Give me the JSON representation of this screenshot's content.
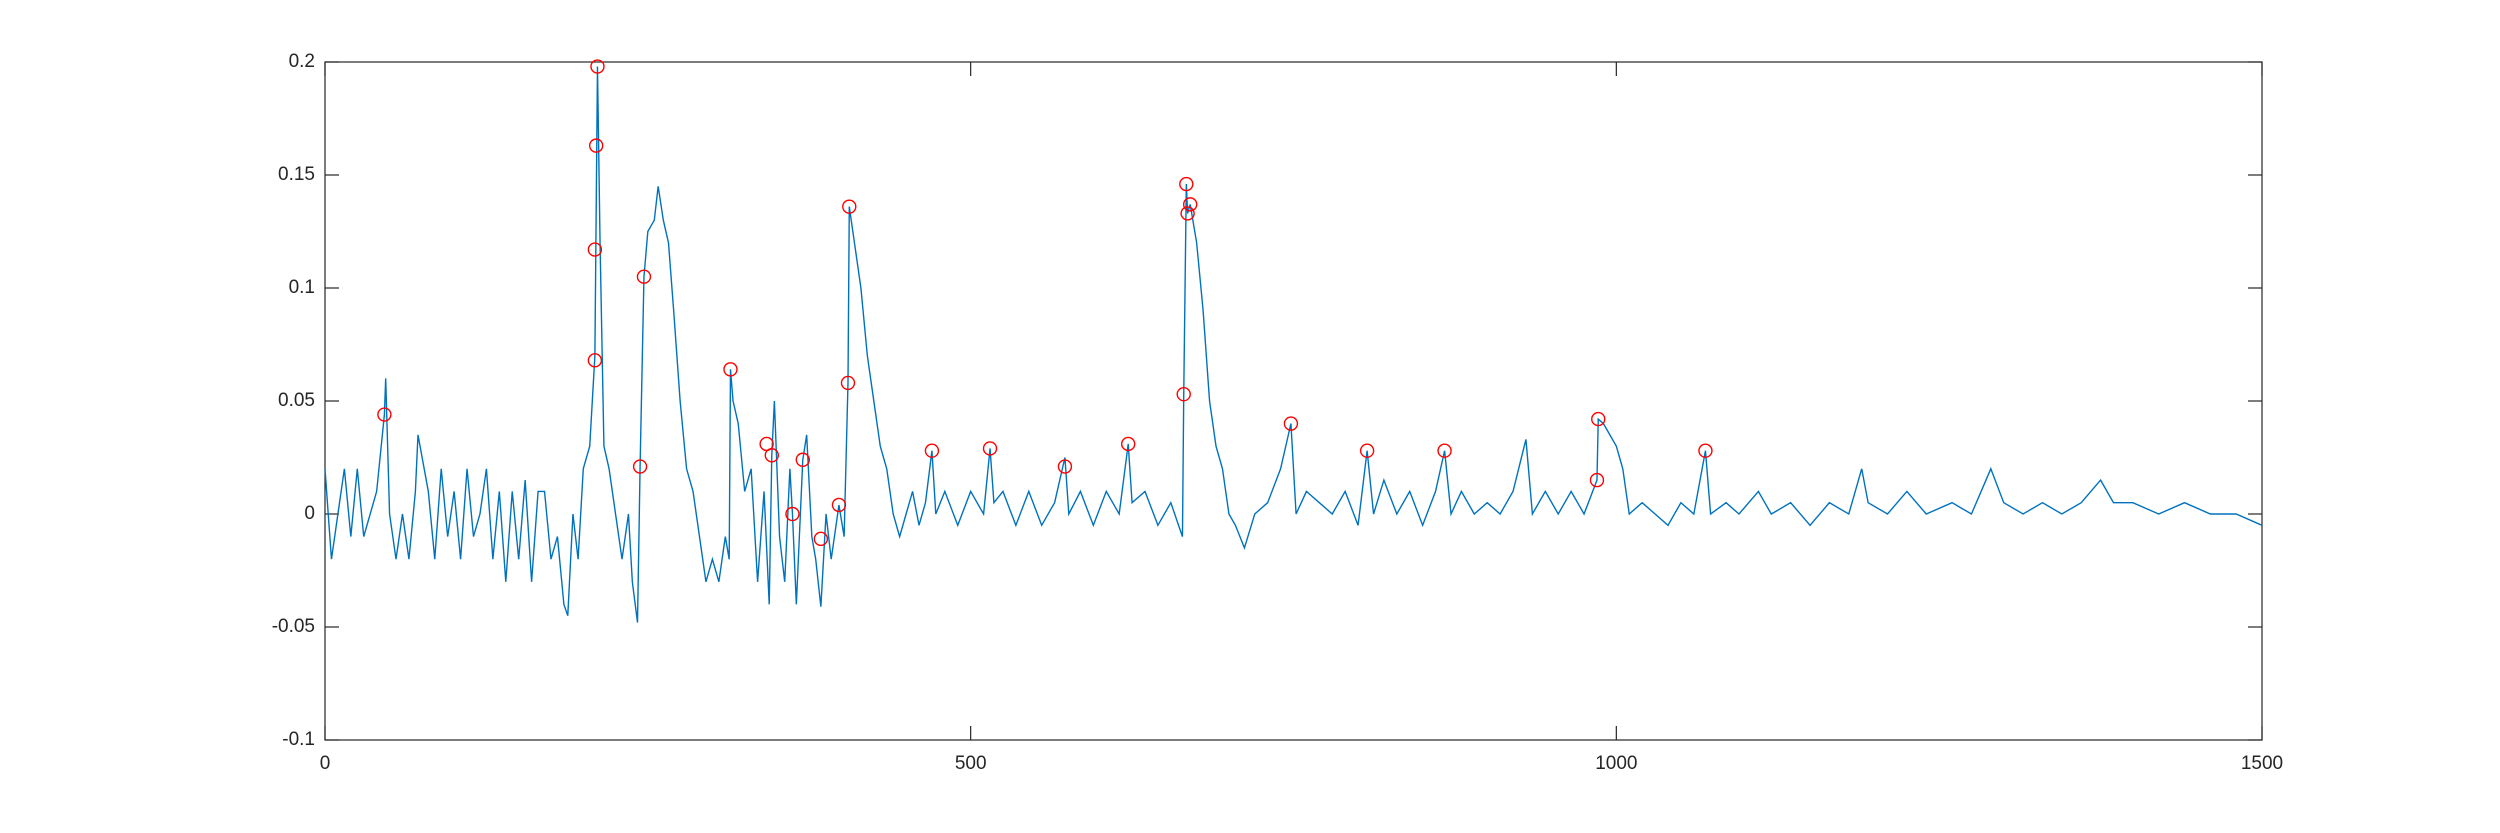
{
  "chart_data": {
    "type": "line",
    "xlim": [
      0,
      1500
    ],
    "xticks": [
      0,
      500,
      1000,
      1500
    ],
    "ylim": [
      -0.1,
      0.2
    ],
    "yticks": [
      -0.1,
      -0.05,
      0,
      0.05,
      0.1,
      0.15,
      0.2
    ],
    "box": true,
    "series": [
      {
        "color": "#0072bd",
        "marker": "none",
        "x": [
          0,
          5,
          10,
          15,
          20,
          25,
          30,
          40,
          46,
          47,
          50,
          55,
          60,
          65,
          70,
          72,
          80,
          85,
          90,
          95,
          100,
          105,
          110,
          115,
          120,
          125,
          130,
          135,
          140,
          145,
          150,
          155,
          160,
          165,
          170,
          175,
          180,
          185,
          188,
          192,
          196,
          200,
          205,
          209,
          211,
          213,
          216,
          220,
          225,
          230,
          235,
          238,
          242,
          244,
          247,
          250,
          255,
          258,
          262,
          266,
          270,
          275,
          280,
          285,
          290,
          295,
          300,
          305,
          310,
          313,
          314,
          316,
          320,
          325,
          330,
          335,
          340,
          344,
          346,
          348,
          352,
          356,
          360,
          362,
          365,
          370,
          373,
          377,
          380,
          384,
          388,
          392,
          398,
          402,
          405,
          406,
          410,
          415,
          420,
          425,
          430,
          435,
          440,
          445,
          450,
          455,
          460,
          465,
          470,
          473,
          480,
          490,
          500,
          510,
          515,
          518,
          525,
          535,
          545,
          555,
          565,
          573,
          576,
          585,
          595,
          605,
          615,
          622,
          625,
          635,
          645,
          655,
          664,
          665,
          667,
          668,
          670,
          675,
          680,
          685,
          690,
          695,
          700,
          705,
          712,
          720,
          730,
          740,
          748,
          752,
          760,
          770,
          780,
          790,
          800,
          807,
          812,
          820,
          830,
          840,
          850,
          860,
          867,
          872,
          880,
          890,
          900,
          910,
          920,
          930,
          935,
          945,
          955,
          965,
          975,
          985,
          986,
          990,
          995,
          1000,
          1005,
          1010,
          1020,
          1030,
          1040,
          1050,
          1060,
          1069,
          1073,
          1085,
          1095,
          1110,
          1120,
          1135,
          1150,
          1165,
          1180,
          1190,
          1195,
          1210,
          1225,
          1240,
          1260,
          1275,
          1290,
          1300,
          1315,
          1330,
          1345,
          1360,
          1375,
          1385,
          1400,
          1420,
          1440,
          1460,
          1480,
          1500
        ],
        "values": [
          0.02,
          -0.02,
          0.0,
          0.02,
          -0.01,
          0.02,
          -0.01,
          0.01,
          0.044,
          0.06,
          0.0,
          -0.02,
          0.0,
          -0.02,
          0.01,
          0.035,
          0.01,
          -0.02,
          0.02,
          -0.01,
          0.01,
          -0.02,
          0.02,
          -0.01,
          0.0,
          0.02,
          -0.02,
          0.01,
          -0.03,
          0.01,
          -0.02,
          0.015,
          -0.03,
          0.01,
          0.01,
          -0.02,
          -0.01,
          -0.04,
          -0.045,
          0.0,
          -0.02,
          0.02,
          0.03,
          0.07,
          0.198,
          0.12,
          0.03,
          0.02,
          0.0,
          -0.02,
          0.0,
          -0.03,
          -0.048,
          0.021,
          0.105,
          0.125,
          0.13,
          0.145,
          0.13,
          0.12,
          0.09,
          0.05,
          0.02,
          0.01,
          -0.01,
          -0.03,
          -0.02,
          -0.03,
          -0.01,
          -0.02,
          0.064,
          0.05,
          0.04,
          0.01,
          0.02,
          -0.03,
          0.01,
          -0.04,
          0.026,
          0.05,
          -0.01,
          -0.03,
          0.02,
          0.0,
          -0.04,
          0.024,
          0.035,
          -0.01,
          -0.02,
          -0.041,
          0.0,
          -0.02,
          0.004,
          -0.01,
          0.058,
          0.136,
          0.12,
          0.1,
          0.07,
          0.05,
          0.03,
          0.02,
          0.0,
          -0.01,
          0.0,
          0.01,
          -0.005,
          0.005,
          0.028,
          0.0,
          0.01,
          -0.005,
          0.01,
          0.0,
          0.029,
          0.005,
          0.01,
          -0.005,
          0.01,
          -0.005,
          0.005,
          0.025,
          0.0,
          0.01,
          -0.005,
          0.01,
          0.0,
          0.031,
          0.005,
          0.01,
          -0.005,
          0.005,
          -0.01,
          0.053,
          0.146,
          0.133,
          0.137,
          0.12,
          0.09,
          0.05,
          0.03,
          0.02,
          0.0,
          -0.005,
          -0.015,
          0.0,
          0.005,
          0.02,
          0.04,
          0.0,
          0.01,
          0.005,
          0.0,
          0.01,
          -0.005,
          0.028,
          0.0,
          0.015,
          0.0,
          0.01,
          -0.005,
          0.01,
          0.028,
          0.0,
          0.01,
          0.0,
          0.005,
          0.0,
          0.01,
          0.033,
          0.0,
          0.01,
          0.0,
          0.01,
          0.0,
          0.015,
          0.042,
          0.04,
          0.035,
          0.03,
          0.02,
          0.0,
          0.005,
          0.0,
          -0.005,
          0.005,
          0.0,
          0.028,
          0.0,
          0.005,
          0.0,
          0.01,
          0.0,
          0.005,
          -0.005,
          0.005,
          0.0,
          0.02,
          0.005,
          0.0,
          0.01,
          0.0,
          0.005,
          0.0,
          0.02,
          0.005,
          0.0,
          0.005,
          0.0,
          0.005,
          0.015,
          0.005,
          0.005,
          0.0,
          0.005,
          0.0,
          0.0,
          -0.005
        ]
      },
      {
        "color": "#ff0000",
        "marker": "circle",
        "x": [
          46,
          211,
          210,
          209,
          209,
          247,
          244,
          314,
          342,
          346,
          362,
          370,
          384,
          398,
          405,
          406,
          470,
          515,
          573,
          622,
          665,
          667,
          668,
          670,
          748,
          807,
          867,
          985,
          986,
          1069
        ],
        "values": [
          0.044,
          0.198,
          0.163,
          0.117,
          0.068,
          0.105,
          0.021,
          0.064,
          0.031,
          0.026,
          0.0,
          0.024,
          -0.011,
          0.004,
          0.058,
          0.136,
          0.028,
          0.029,
          0.021,
          0.031,
          0.053,
          0.146,
          0.133,
          0.137,
          0.04,
          0.028,
          0.028,
          0.015,
          0.042,
          0.028
        ]
      }
    ]
  }
}
